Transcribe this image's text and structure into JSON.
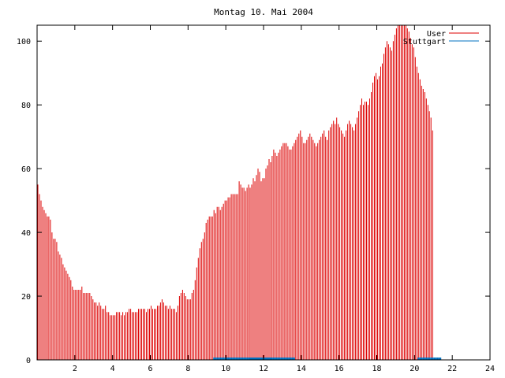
{
  "chart_data": {
    "type": "bar",
    "title": "Montag 10. Mai 2004",
    "xlabel": "",
    "ylabel": "",
    "xlim": [
      0,
      24
    ],
    "ylim": [
      0,
      105
    ],
    "x_ticks": [
      2,
      4,
      6,
      8,
      10,
      12,
      14,
      16,
      18,
      20,
      22,
      24
    ],
    "y_ticks": [
      0,
      20,
      40,
      60,
      80,
      100
    ],
    "grid": false,
    "legend": "top-right",
    "colors": {
      "User": "#dd0000",
      "Stuttgart": "#0070c0",
      "frame": "#000000"
    },
    "series": [
      {
        "name": "User",
        "color": "#dd0000",
        "x_start": 0,
        "x_step": 0.08333,
        "values": [
          55,
          52,
          50,
          48,
          47,
          46,
          45,
          45,
          44,
          40,
          38,
          38,
          37,
          34,
          33,
          32,
          30,
          29,
          28,
          27,
          26,
          25,
          23,
          22,
          22,
          22,
          22,
          22,
          23,
          21,
          21,
          21,
          21,
          21,
          20,
          19,
          18,
          18,
          17,
          18,
          17,
          16,
          16,
          17,
          15,
          15,
          14,
          14,
          14,
          14,
          15,
          15,
          15,
          14,
          15,
          14,
          15,
          15,
          16,
          16,
          15,
          15,
          15,
          15,
          16,
          16,
          16,
          16,
          16,
          15,
          16,
          16,
          17,
          16,
          16,
          16,
          17,
          17,
          18,
          19,
          18,
          17,
          17,
          16,
          17,
          16,
          16,
          16,
          15,
          17,
          20,
          21,
          22,
          21,
          20,
          19,
          19,
          19,
          21,
          22,
          25,
          29,
          32,
          35,
          37,
          38,
          40,
          43,
          44,
          45,
          45,
          45,
          47,
          46,
          48,
          48,
          47,
          48,
          49,
          50,
          50,
          51,
          51,
          52,
          52,
          52,
          52,
          52,
          56,
          55,
          54,
          54,
          53,
          54,
          55,
          54,
          55,
          57,
          56,
          58,
          60,
          59,
          56,
          57,
          57,
          60,
          61,
          63,
          62,
          64,
          66,
          65,
          64,
          65,
          66,
          67,
          68,
          68,
          68,
          67,
          66,
          66,
          67,
          68,
          69,
          70,
          71,
          72,
          70,
          68,
          68,
          69,
          70,
          71,
          70,
          69,
          68,
          67,
          68,
          69,
          70,
          71,
          72,
          70,
          69,
          72,
          73,
          74,
          75,
          74,
          76,
          74,
          73,
          72,
          71,
          70,
          72,
          74,
          75,
          74,
          73,
          72,
          74,
          76,
          78,
          80,
          82,
          80,
          81,
          81,
          80,
          82,
          84,
          87,
          89,
          90,
          88,
          89,
          92,
          93,
          96,
          98,
          100,
          99,
          98,
          97,
          100,
          102,
          104,
          105,
          105,
          105,
          105,
          105,
          105,
          104,
          103,
          101,
          99,
          98,
          95,
          92,
          90,
          88,
          86,
          85,
          84,
          82,
          80,
          78,
          76,
          72
        ]
      },
      {
        "name": "Stuttgart",
        "color": "#0070c0",
        "x_start": 0,
        "x_step": 0.08333,
        "values": [
          0,
          0,
          0,
          0,
          0,
          0,
          0,
          0,
          0,
          0,
          0,
          0,
          0,
          0,
          0,
          0,
          0,
          0,
          0,
          0,
          0,
          0,
          0,
          0,
          0,
          0,
          0,
          0,
          0,
          0,
          0,
          0,
          0,
          0,
          0,
          0,
          0,
          0,
          0,
          0,
          0,
          0,
          0,
          0,
          0,
          0,
          0,
          0,
          0,
          0,
          0,
          0,
          0,
          0,
          0,
          0,
          0,
          0,
          0,
          0,
          0,
          0,
          0,
          0,
          0,
          0,
          0,
          0,
          0,
          0,
          0,
          0,
          0,
          0,
          0,
          0,
          0,
          0,
          0,
          0,
          0,
          0,
          0,
          0,
          0,
          0,
          0,
          0,
          0,
          0,
          0,
          0,
          0,
          0,
          0,
          0,
          0,
          0,
          0,
          0,
          0,
          0,
          0,
          0,
          0,
          0,
          0,
          0,
          0,
          0,
          0,
          0,
          1,
          1,
          1,
          1,
          1,
          1,
          1,
          1,
          1,
          1,
          1,
          1,
          1,
          1,
          1,
          1,
          1,
          1,
          1,
          1,
          1,
          1,
          1,
          1,
          1,
          1,
          1,
          1,
          1,
          1,
          1,
          1,
          1,
          1,
          1,
          1,
          1,
          1,
          1,
          1,
          1,
          1,
          1,
          1,
          1,
          1,
          1,
          1,
          1,
          1,
          1,
          1,
          0,
          0,
          0,
          0,
          0,
          0,
          0,
          0,
          0,
          0,
          0,
          0,
          0,
          0,
          0,
          0,
          0,
          0,
          0,
          0,
          0,
          0,
          0,
          0,
          0,
          0,
          0,
          0,
          0,
          0,
          0,
          0,
          0,
          0,
          0,
          0,
          0,
          0,
          0,
          0,
          0,
          0,
          0,
          0,
          0,
          0,
          0,
          0,
          0,
          0,
          0,
          0,
          0,
          0,
          0,
          0,
          0,
          0,
          0,
          0,
          0,
          0,
          0,
          0,
          0,
          0,
          0,
          0,
          0,
          0,
          0,
          0,
          0,
          0,
          0,
          0,
          0,
          0,
          1,
          1,
          1,
          1,
          1,
          1,
          1,
          1,
          1,
          1,
          1,
          1,
          1,
          1,
          1
        ]
      }
    ]
  }
}
